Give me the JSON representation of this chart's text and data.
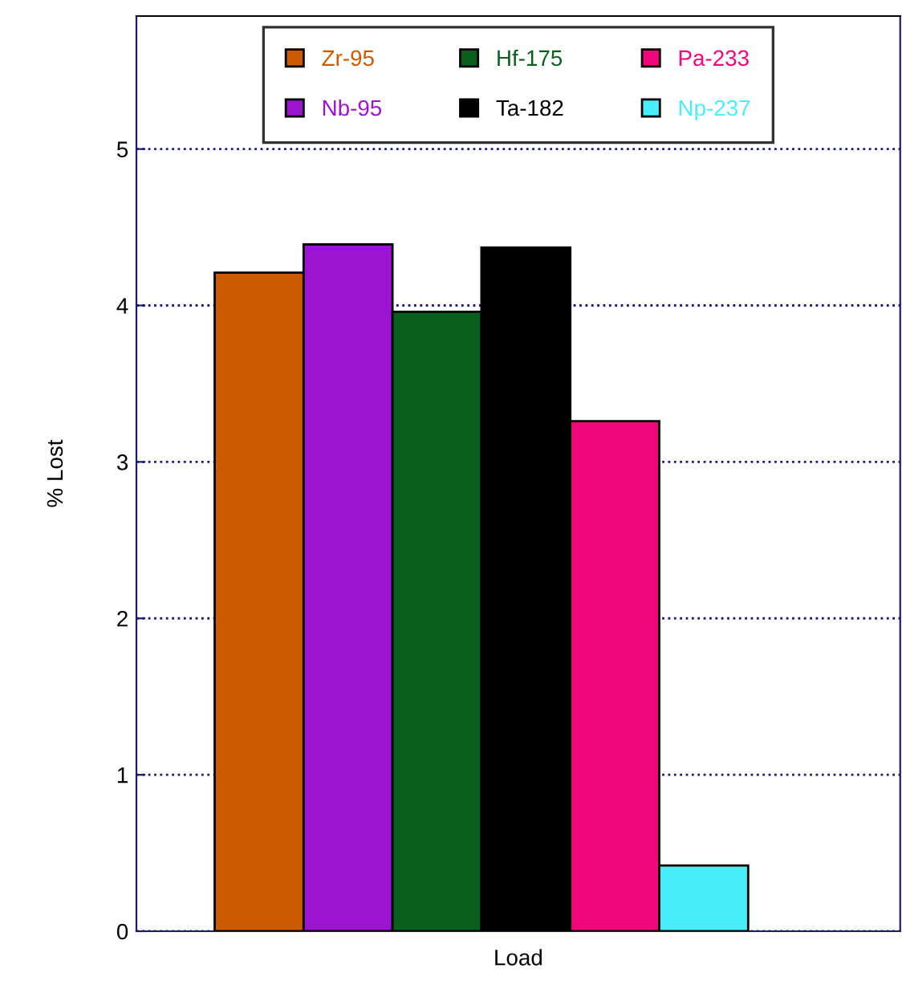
{
  "chart_data": {
    "type": "bar",
    "categories": [
      null
    ],
    "xlabel": "Load",
    "ylabel": "% Lost",
    "series": [
      {
        "name": "Zr-95",
        "color": "#cc5a00",
        "values": [
          4.21
        ]
      },
      {
        "name": "Nb-95",
        "color": "#9a14d2",
        "values": [
          4.39
        ]
      },
      {
        "name": "Hf-175",
        "color": "#0a5e1e",
        "values": [
          3.96
        ]
      },
      {
        "name": "Ta-182",
        "color": "#000000",
        "values": [
          4.37
        ]
      },
      {
        "name": "Pa-233",
        "color": "#f0087a",
        "values": [
          3.26
        ]
      },
      {
        "name": "Np-237",
        "color": "#48eefa",
        "values": [
          0.42
        ]
      }
    ],
    "ylim": [
      0,
      5.85
    ],
    "yticks": [
      0,
      1,
      2,
      3,
      4,
      5
    ],
    "grid": "y",
    "legend": "top"
  }
}
